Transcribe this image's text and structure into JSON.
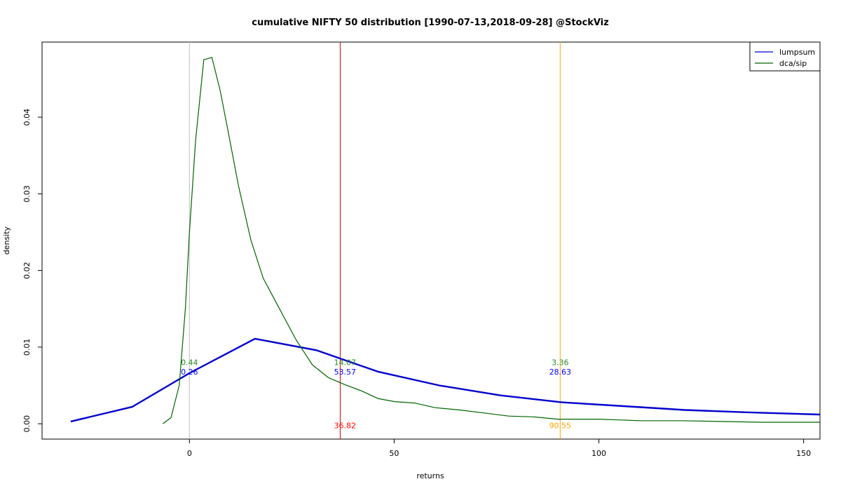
{
  "chart_data": {
    "type": "line",
    "title": "cumulative NIFTY 50 distribution [1990-07-13,2018-09-28] @StockViz",
    "xlabel": "returns",
    "ylabel": "density",
    "xlim": [
      -36,
      154
    ],
    "ylim": [
      -0.002,
      0.0498
    ],
    "xticks": [
      0,
      50,
      100,
      150
    ],
    "yticks": [
      0.0,
      0.01,
      0.02,
      0.03,
      0.04
    ],
    "ytick_labels": [
      "0.00",
      "0.01",
      "0.02",
      "0.03",
      "0.04"
    ],
    "grid": false,
    "legend_position": "top-right",
    "series": [
      {
        "name": "lumpsum",
        "color": "#0000cc",
        "x": [
          -29,
          -14,
          0,
          16,
          31,
          46,
          61,
          76,
          91,
          106,
          121,
          136,
          154
        ],
        "y": [
          0.0003,
          0.0022,
          0.0066,
          0.0111,
          0.0096,
          0.0068,
          0.005,
          0.0037,
          0.0028,
          0.0023,
          0.0018,
          0.0015,
          0.0012
        ]
      },
      {
        "name": "dca/sip",
        "color": "#006400",
        "x": [
          -6.5,
          -4.5,
          -2.5,
          -1,
          0,
          1.5,
          3.5,
          5.5,
          7.5,
          9.5,
          12,
          15,
          18,
          22,
          26,
          30,
          34,
          38,
          42,
          46,
          50,
          55,
          60,
          66,
          72,
          78,
          84,
          90,
          100,
          110,
          120,
          130,
          140,
          154
        ],
        "y": [
          0.0,
          0.0008,
          0.005,
          0.015,
          0.025,
          0.037,
          0.0475,
          0.0478,
          0.0435,
          0.038,
          0.031,
          0.024,
          0.019,
          0.015,
          0.011,
          0.0077,
          0.006,
          0.0051,
          0.0043,
          0.0033,
          0.0029,
          0.0027,
          0.0021,
          0.0018,
          0.0014,
          0.001,
          0.0009,
          0.0006,
          0.0006,
          0.0004,
          0.0004,
          0.0003,
          0.0002,
          0.0002
        ]
      }
    ],
    "vlines": [
      {
        "x": 0,
        "color": "#bebebe"
      },
      {
        "x": 36.82,
        "color": "#cc0000"
      },
      {
        "x": 90.55,
        "color": "#ffa500"
      }
    ],
    "annotations": [
      {
        "x": 0,
        "y": 0.008,
        "text": "0.44",
        "color": "#228b22"
      },
      {
        "x": 0,
        "y": 0.0068,
        "text": "0.26",
        "color": "#0000ff"
      },
      {
        "x": 38,
        "y": 0.008,
        "text": "14.07",
        "color": "#228b22"
      },
      {
        "x": 38,
        "y": 0.0068,
        "text": "53.57",
        "color": "#0000ff"
      },
      {
        "x": 90.55,
        "y": 0.008,
        "text": "3.36",
        "color": "#228b22"
      },
      {
        "x": 90.55,
        "y": 0.0068,
        "text": "28.63",
        "color": "#0000ff"
      },
      {
        "x": 38,
        "y": -0.0002,
        "text": "36.82",
        "color": "#ff0000"
      },
      {
        "x": 90.55,
        "y": -0.0002,
        "text": "90.55",
        "color": "#ffa500"
      }
    ]
  }
}
